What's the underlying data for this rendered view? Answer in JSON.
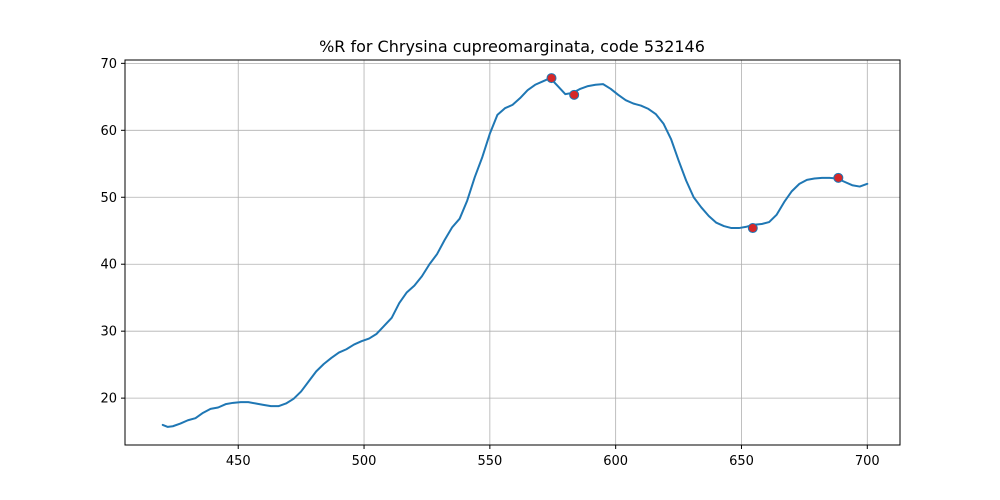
{
  "chart_data": {
    "type": "line",
    "title": "%R for Chrysina cupreomarginata, code 532146",
    "xlabel": "",
    "ylabel": "",
    "xlim": [
      405,
      713
    ],
    "ylim": [
      13,
      70.5
    ],
    "xticks": [
      450,
      500,
      550,
      600,
      650,
      700
    ],
    "yticks": [
      20,
      30,
      40,
      50,
      60,
      70
    ],
    "grid": true,
    "line_color": "#1f77b4",
    "marker_color": "#d62728",
    "series": [
      {
        "x": [
          420,
          422,
          424,
          427,
          430,
          433,
          436,
          439,
          442,
          445,
          448,
          451,
          454,
          457,
          460,
          463,
          466,
          469,
          472,
          475,
          478,
          481,
          484,
          487,
          490,
          493,
          496,
          499,
          502,
          505,
          508,
          511,
          514,
          517,
          520,
          523,
          526,
          529,
          532,
          535,
          538,
          541,
          544,
          547,
          550,
          553,
          556,
          559,
          562,
          565,
          568,
          571,
          574,
          577,
          580,
          583,
          586,
          589,
          592,
          595,
          598,
          601,
          604,
          607,
          610,
          613,
          616,
          619,
          622,
          625,
          628,
          631,
          634,
          637,
          640,
          643,
          646,
          649,
          652,
          655,
          658,
          661,
          664,
          667,
          670,
          673,
          676,
          679,
          682,
          685,
          688,
          691,
          694,
          697,
          700
        ],
        "y": [
          16.0,
          15.7,
          15.8,
          16.2,
          16.7,
          17.0,
          17.8,
          18.4,
          18.6,
          19.1,
          19.3,
          19.4,
          19.4,
          19.2,
          19.0,
          18.8,
          18.8,
          19.2,
          19.9,
          21.0,
          22.5,
          24.0,
          25.1,
          26.0,
          26.8,
          27.3,
          28.0,
          28.5,
          28.9,
          29.6,
          30.8,
          32.0,
          34.2,
          35.8,
          36.8,
          38.2,
          40.0,
          41.5,
          43.6,
          45.5,
          46.8,
          49.5,
          53.0,
          56.0,
          59.5,
          62.3,
          63.3,
          63.8,
          64.8,
          66.0,
          66.8,
          67.3,
          67.8,
          66.6,
          65.4,
          65.6,
          66.2,
          66.6,
          66.8,
          66.9,
          66.2,
          65.3,
          64.5,
          64.0,
          63.7,
          63.2,
          62.4,
          61.0,
          58.7,
          55.5,
          52.5,
          50.0,
          48.5,
          47.2,
          46.2,
          45.7,
          45.4,
          45.4,
          45.6,
          45.9,
          46.0,
          46.3,
          47.4,
          49.3,
          50.9,
          52.0,
          52.6,
          52.8,
          52.9,
          52.9,
          52.8,
          52.3,
          51.8,
          51.6,
          52.0
        ]
      }
    ],
    "markers": {
      "x": [
        574.5,
        583.5,
        654.5,
        688.5
      ],
      "y": [
        67.8,
        65.3,
        45.4,
        52.9
      ]
    }
  }
}
